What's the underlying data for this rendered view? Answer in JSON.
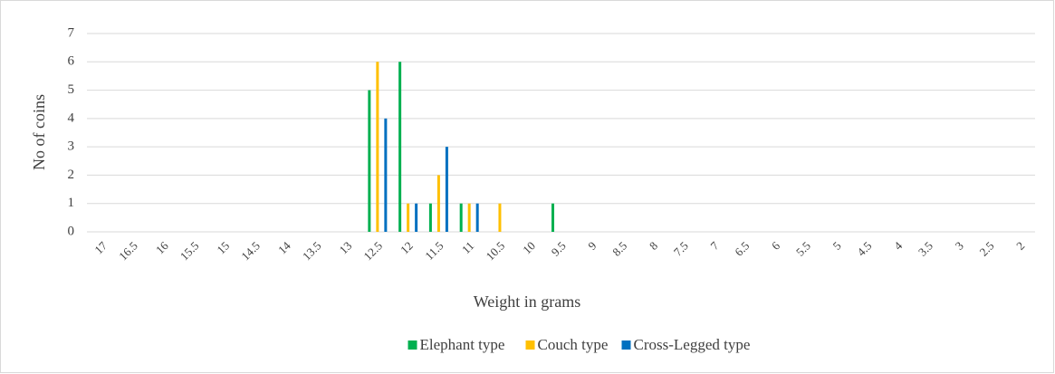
{
  "chart_data": {
    "type": "bar",
    "ylabel": "No of coins",
    "xlabel": "Weight in grams",
    "categories": [
      "17",
      "16.5",
      "16",
      "15.5",
      "15",
      "14.5",
      "14",
      "13.5",
      "13",
      "12.5",
      "12",
      "11.5",
      "11",
      "10.5",
      "10",
      "9.5",
      "9",
      "8.5",
      "8",
      "7.5",
      "7",
      "6.5",
      "6",
      "5.5",
      "5",
      "4.5",
      "4",
      "3.5",
      "3",
      "2.5",
      "2"
    ],
    "series": [
      {
        "name": "Elephant type",
        "color": "#00b050",
        "values": [
          0,
          0,
          0,
          0,
          0,
          0,
          0,
          0,
          0,
          5,
          6,
          1,
          1,
          0,
          0,
          1,
          0,
          0,
          0,
          0,
          0,
          0,
          0,
          0,
          0,
          0,
          0,
          0,
          0,
          0,
          0
        ]
      },
      {
        "name": "Couch type",
        "color": "#ffc000",
        "values": [
          0,
          0,
          0,
          0,
          0,
          0,
          0,
          0,
          0,
          6,
          1,
          2,
          1,
          1,
          0,
          0,
          0,
          0,
          0,
          0,
          0,
          0,
          0,
          0,
          0,
          0,
          0,
          0,
          0,
          0,
          0
        ]
      },
      {
        "name": "Cross-Legged type",
        "color": "#0070c0",
        "values": [
          0,
          0,
          0,
          0,
          0,
          0,
          0,
          0,
          0,
          4,
          1,
          3,
          1,
          0,
          0,
          0,
          0,
          0,
          0,
          0,
          0,
          0,
          0,
          0,
          0,
          0,
          0,
          0,
          0,
          0,
          0
        ]
      }
    ],
    "ylim": [
      0,
      7
    ],
    "yticks": [
      0,
      1,
      2,
      3,
      4,
      5,
      6,
      7
    ],
    "grid": true,
    "legend": "bottom"
  }
}
